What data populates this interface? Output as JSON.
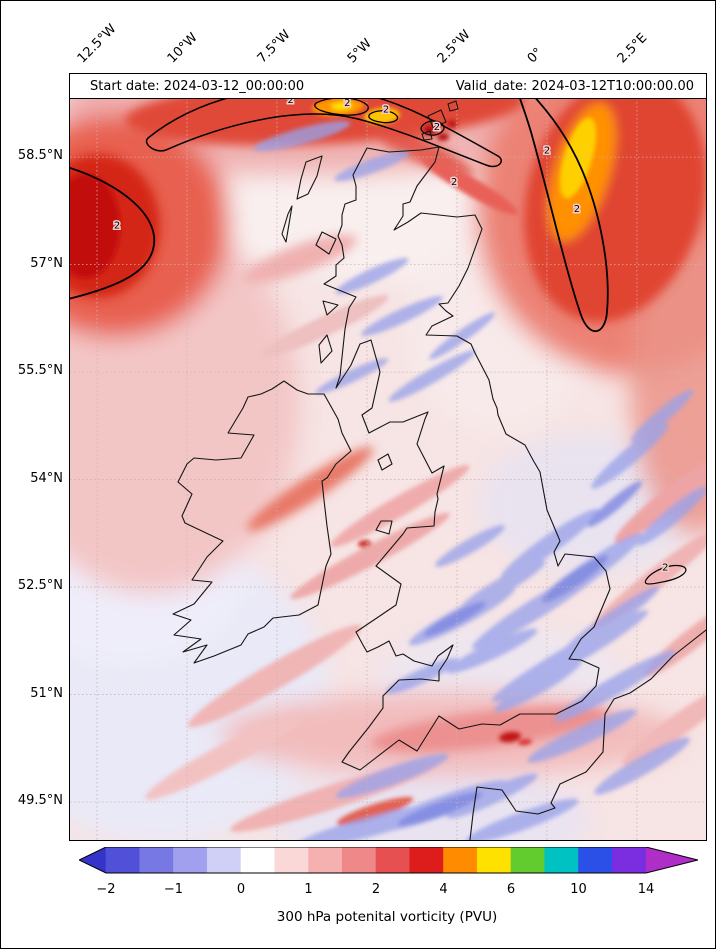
{
  "chart_data": {
    "type": "heatmap",
    "title": "300 hPa potenital vorticity (PVU)",
    "start_date_label": "Start date: 2024-03-12_00:00:00",
    "valid_date_label": "Valid_date: 2024-03-12T10:00:00.00",
    "x_ticks": [
      "12.5°W",
      "10°W",
      "7.5°W",
      "5°W",
      "2.5°W",
      "0°",
      "2.5°E"
    ],
    "x_tick_values": [
      -12.5,
      -10,
      -7.5,
      -5,
      -2.5,
      0,
      2.5
    ],
    "y_ticks": [
      "58.5°N",
      "57°N",
      "55.5°N",
      "54°N",
      "52.5°N",
      "51°N",
      "49.5°N"
    ],
    "y_tick_values": [
      58.5,
      57,
      55.5,
      54,
      52.5,
      51,
      49.5
    ],
    "map_region": {
      "lon_min": -13.25,
      "lon_max": 4.42,
      "lat_min": 48.97,
      "lat_max": 59.66
    },
    "grid": true,
    "legend_position": "bottom-colorbar",
    "colorbar": {
      "levels": [
        -2,
        -1.5,
        -1,
        -0.5,
        0,
        0.5,
        1,
        1.5,
        2,
        3,
        4,
        5,
        6,
        8,
        10,
        12,
        14
      ],
      "segment_colors": [
        "#5050d8",
        "#7878e4",
        "#a0a0ee",
        "#d0d0f6",
        "#ffffff",
        "#fad8d8",
        "#f5b0b0",
        "#ef8888",
        "#e65050",
        "#dd1c1c",
        "#ff8c00",
        "#ffe100",
        "#62cc2e",
        "#00c2c2",
        "#2b50e8",
        "#7a2ee0"
      ],
      "under_color": "#3434c8",
      "over_color": "#b02ec8",
      "tick_labels": [
        "−2",
        "−1",
        "0",
        "1",
        "2",
        "4",
        "6",
        "10",
        "14"
      ],
      "tick_level_indices": [
        0,
        2,
        4,
        6,
        8,
        10,
        12,
        14,
        16
      ],
      "unit": "PVU"
    },
    "contour_value_labels": [
      {
        "text": "2",
        "x": 0.074,
        "y": 0.202
      },
      {
        "text": "2",
        "x": 0.347,
        "y": 0.038
      },
      {
        "text": "2",
        "x": 0.436,
        "y": 0.042
      },
      {
        "text": "2",
        "x": 0.497,
        "y": 0.05
      },
      {
        "text": "2",
        "x": 0.577,
        "y": 0.073
      },
      {
        "text": "2",
        "x": 0.604,
        "y": 0.145
      },
      {
        "text": "2",
        "x": 0.75,
        "y": 0.104
      },
      {
        "text": "2",
        "x": 0.797,
        "y": 0.18
      },
      {
        "text": "2",
        "x": 0.936,
        "y": 0.648
      }
    ],
    "field_summary": "Filled contours of 300 hPa potential vorticity over Britain and Ireland: mostly 0-1 PVU (pale pink/white), PV maxima above 2 PVU (red/orange, enclosed by black 2-PVU contour lines) in the northwest corner, along the northern edge and over the eastern North Sea, with thin negative (blue, about -1 PVU) filaments over England, the North Sea and the English Channel."
  }
}
